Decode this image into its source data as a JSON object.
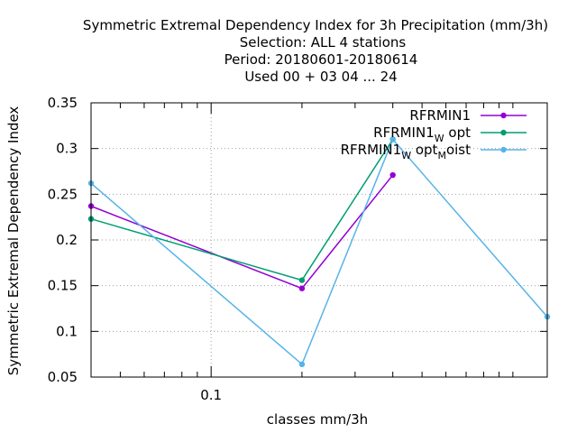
{
  "chart_data": {
    "type": "line",
    "title_lines": [
      "Symmetric Extremal Dependency Index  for 3h Precipitation (mm/3h)",
      "Selection: ALL      4 stations",
      "Period: 20180601-20180614",
      "Used  00 + 03 04 ... 24"
    ],
    "xlabel": "classes mm/3h",
    "ylabel": "Symmetric Extremal Dependency Index",
    "x_scale": "log",
    "xlim": [
      0.04,
      1.3
    ],
    "ylim": [
      0.05,
      0.35
    ],
    "y_ticks": [
      "0.05",
      "0.1",
      "0.15",
      "0.2",
      "0.25",
      "0.3",
      "0.35"
    ],
    "x_ticks": [
      "0.1"
    ],
    "grid": "dotted, at labelled ticks",
    "legend_position": "top-right",
    "series": [
      {
        "name_parts": [
          {
            "text": "RFRMIN1"
          }
        ],
        "color": "#9400d3",
        "x": [
          0.04,
          0.2,
          0.4
        ],
        "y": [
          0.237,
          0.147,
          0.271
        ]
      },
      {
        "name_parts": [
          {
            "text": "RFRMIN1"
          },
          {
            "text": "W",
            "sub": true
          },
          {
            "text": " opt"
          }
        ],
        "color": "#009e73",
        "x": [
          0.04,
          0.2,
          0.4
        ],
        "y": [
          0.223,
          0.156,
          0.31
        ]
      },
      {
        "name_parts": [
          {
            "text": "RFRMIN1"
          },
          {
            "text": "W",
            "sub": true
          },
          {
            "text": " opt"
          },
          {
            "text": "M",
            "sub": true
          },
          {
            "text": "oist"
          }
        ],
        "color": "#56b4e9",
        "x": [
          0.04,
          0.2,
          0.4,
          1.3
        ],
        "y": [
          0.262,
          0.064,
          0.31,
          0.116
        ]
      }
    ]
  }
}
